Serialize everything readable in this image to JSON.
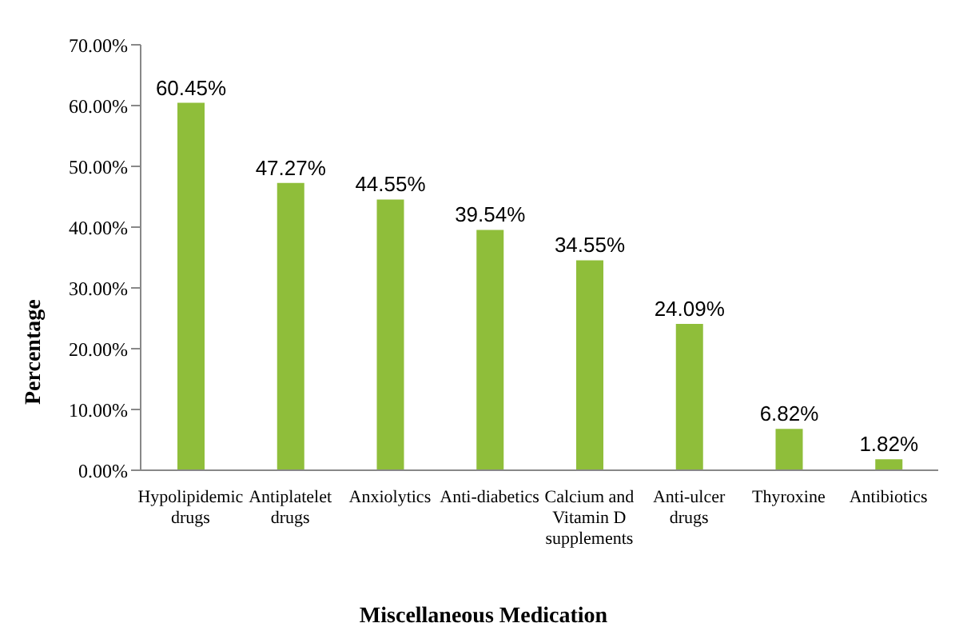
{
  "chart_data": {
    "type": "bar",
    "xlabel": "Miscellaneous Medication",
    "ylabel": "Percentage",
    "categories": [
      "Hypolipidemic drugs",
      "Antiplatelet drugs",
      "Anxiolytics",
      "Anti-diabetics",
      "Calcium and Vitamin D supplements",
      "Anti-ulcer drugs",
      "Thyroxine",
      "Antibiotics"
    ],
    "values": [
      60.45,
      47.27,
      44.55,
      39.54,
      34.55,
      24.09,
      6.82,
      1.82
    ],
    "value_labels": [
      "60.45%",
      "47.27%",
      "44.55%",
      "39.54%",
      "34.55%",
      "24.09%",
      "6.82%",
      "1.82%"
    ],
    "color": "#8fbe3a",
    "ylim": [
      0,
      70
    ],
    "yticks": [
      {
        "value": 0,
        "label": "0.00%"
      },
      {
        "value": 10,
        "label": "10.00%"
      },
      {
        "value": 20,
        "label": "20.00%"
      },
      {
        "value": 30,
        "label": "30.00%"
      },
      {
        "value": 40,
        "label": "40.00%"
      },
      {
        "value": 50,
        "label": "50.00%"
      },
      {
        "value": 60,
        "label": "60.00%"
      },
      {
        "value": 70,
        "label": "70.00%"
      }
    ]
  }
}
